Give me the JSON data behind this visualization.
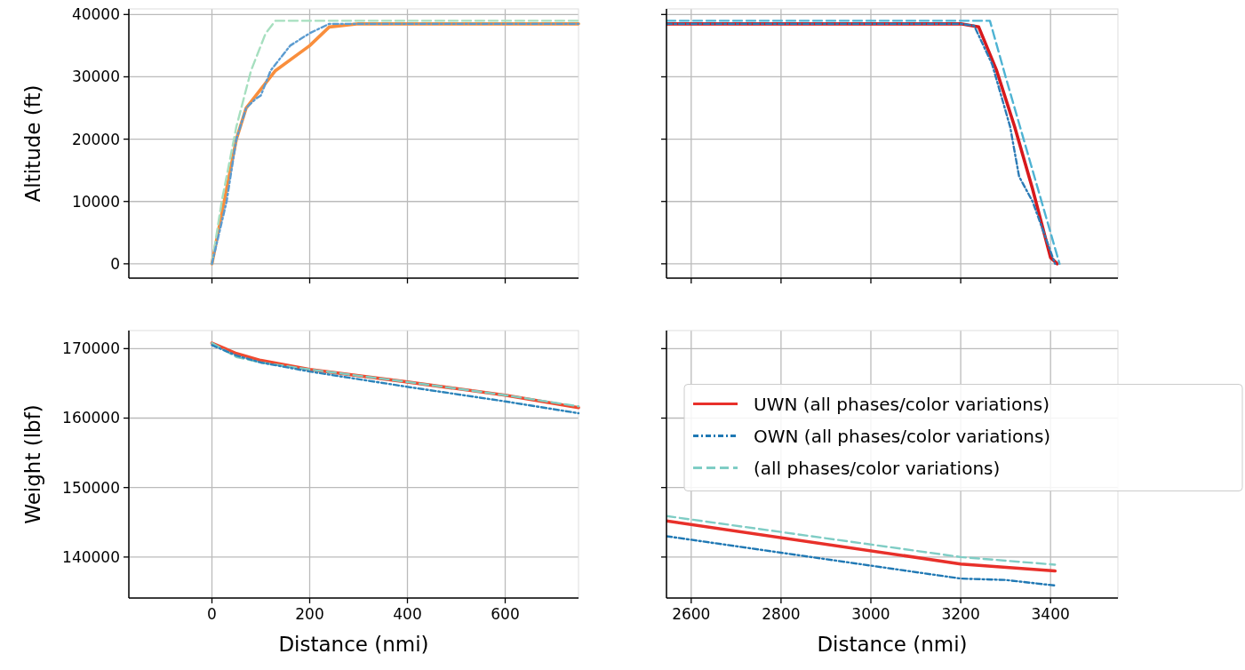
{
  "chart_data": [
    {
      "type": "line",
      "ylabel": "Altitude (ft)",
      "xlim": [
        -170,
        750
      ],
      "xticks": [
        0,
        200,
        400,
        600
      ],
      "ylim": [
        -2300,
        40900
      ],
      "yticks": [
        0,
        10000,
        20000,
        30000,
        40000
      ],
      "grid": true,
      "tick_labels": "y",
      "series": [
        {
          "color": "#f98e3c",
          "line_style": "solid",
          "x": [
            0,
            20,
            30,
            50,
            70,
            100,
            130,
            200,
            240,
            300,
            750
          ],
          "values": [
            0,
            8000,
            12000,
            20000,
            25000,
            28000,
            31000,
            35000,
            38000,
            38500,
            38500
          ]
        },
        {
          "color": "#5b9bd0",
          "line_style": "dashdot",
          "x": [
            0,
            30,
            50,
            70,
            90,
            100,
            120,
            160,
            200,
            240,
            750
          ],
          "values": [
            0,
            10000,
            20000,
            25000,
            26500,
            27000,
            31000,
            35000,
            37000,
            38500,
            38500
          ]
        },
        {
          "color": "#a6dfbf",
          "line_style": "dashed",
          "x": [
            0,
            20,
            50,
            80,
            110,
            130,
            750
          ],
          "values": [
            0,
            10000,
            22000,
            31000,
            37000,
            39000,
            39000
          ]
        }
      ]
    },
    {
      "type": "line",
      "xlim": [
        2545,
        3550
      ],
      "xticks": [
        2600,
        2800,
        3000,
        3200,
        3400
      ],
      "ylim": [
        -2300,
        40900
      ],
      "yticks": [
        0,
        10000,
        20000,
        30000,
        40000
      ],
      "grid": true,
      "tick_labels": false,
      "series": [
        {
          "color": "#d7191c",
          "line_style": "solid",
          "x": [
            2545,
            3200,
            3240,
            3280,
            3320,
            3360,
            3400,
            3415
          ],
          "values": [
            38500,
            38500,
            38000,
            31000,
            22000,
            12000,
            1000,
            0
          ]
        },
        {
          "color": "#2c7bb6",
          "line_style": "dashdot",
          "x": [
            2545,
            3200,
            3230,
            3270,
            3310,
            3330,
            3360,
            3410
          ],
          "values": [
            38500,
            38500,
            38200,
            32000,
            22000,
            14000,
            10000,
            0
          ]
        },
        {
          "color": "#4eb3d3",
          "line_style": "dashed",
          "x": [
            2545,
            3265,
            3300,
            3340,
            3380,
            3420
          ],
          "values": [
            39000,
            39000,
            30000,
            20000,
            10000,
            0
          ]
        }
      ]
    },
    {
      "type": "line",
      "xlabel": "Distance (nmi)",
      "ylabel": "Weight (lbf)",
      "xlim": [
        -170,
        750
      ],
      "xticks": [
        0,
        200,
        400,
        600
      ],
      "ylim": [
        134100,
        172600
      ],
      "yticks": [
        140000,
        150000,
        160000,
        170000
      ],
      "grid": true,
      "series": [
        {
          "color": "#f04a30",
          "line_style": "solid",
          "x": [
            0,
            50,
            100,
            200,
            400,
            600,
            750
          ],
          "values": [
            170800,
            169300,
            168300,
            167000,
            165200,
            163300,
            161500
          ]
        },
        {
          "color": "#2b83ba",
          "line_style": "dashdot",
          "x": [
            0,
            50,
            100,
            200,
            400,
            600,
            750
          ],
          "values": [
            170500,
            169000,
            168000,
            166700,
            164500,
            162400,
            160700
          ]
        },
        {
          "color": "#80cdc1",
          "line_style": "dashed",
          "x": [
            0,
            50,
            100,
            200,
            400,
            600,
            750
          ],
          "values": [
            170800,
            168800,
            168000,
            167000,
            165200,
            163300,
            161700
          ]
        }
      ]
    },
    {
      "type": "line",
      "xlabel": "Distance (nmi)",
      "xlim": [
        2545,
        3550
      ],
      "xticks": [
        2600,
        2800,
        3000,
        3200,
        3400
      ],
      "ylim": [
        134100,
        172600
      ],
      "yticks": [
        140000,
        150000,
        160000,
        170000
      ],
      "grid": true,
      "tick_labels": "x",
      "legend": "right",
      "series": [
        {
          "name": "UWN (all phases/color variations)",
          "color": "#e8302a",
          "line_style": "solid",
          "x": [
            2545,
            3200,
            3410
          ],
          "values": [
            145200,
            139000,
            138000
          ]
        },
        {
          "name": "OWN (all phases/color variations)",
          "color": "#1f78b4",
          "line_style": "dashdot",
          "x": [
            2545,
            3200,
            3300,
            3410
          ],
          "values": [
            143000,
            136900,
            136700,
            135900
          ]
        },
        {
          "name": "(all phases/color variations)",
          "color": "#7fcdc5",
          "line_style": "dashed",
          "x": [
            2545,
            3200,
            3410
          ],
          "values": [
            145900,
            140000,
            138900
          ]
        }
      ]
    }
  ]
}
